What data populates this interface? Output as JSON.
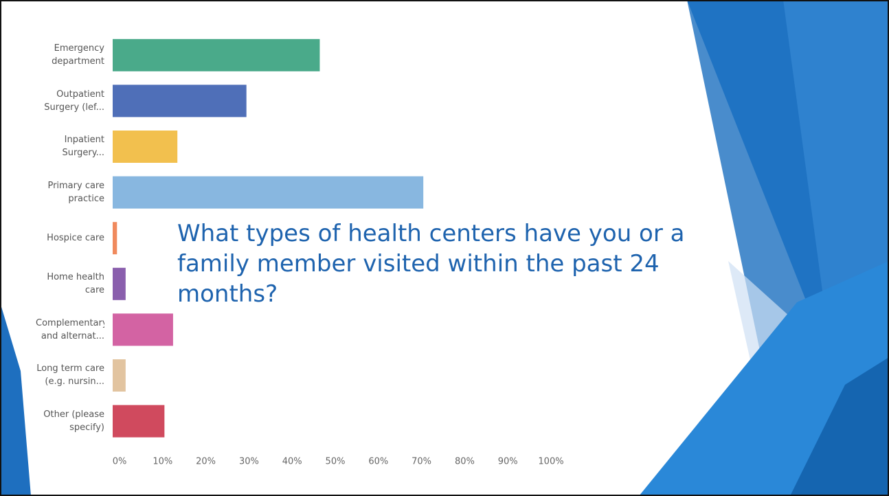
{
  "chart_data": {
    "type": "bar",
    "orientation": "horizontal",
    "title": "What types of health centers have you or a family member visited within the past 24 months?",
    "categories": [
      "Emergency department",
      "Outpatient Surgery (lef...",
      "Inpatient Surgery...",
      "Primary care practice",
      "Hospice care",
      "Home health care",
      "Complementary and alternat...",
      "Long term care (e.g. nursin...",
      "Other (please specify)"
    ],
    "values": [
      48,
      31,
      15,
      72,
      1,
      3,
      14,
      3,
      12
    ],
    "colors": [
      "#4aaa8a",
      "#4f6fb8",
      "#f2c04e",
      "#88b7e0",
      "#f08a5d",
      "#8a5fad",
      "#d363a3",
      "#e2c4a0",
      "#d04a5e"
    ],
    "xlim": [
      0,
      100
    ],
    "xticks": [
      {
        "value": 0,
        "label": "0%"
      },
      {
        "value": 10,
        "label": "10%"
      },
      {
        "value": 20,
        "label": "20%"
      },
      {
        "value": 30,
        "label": "30%"
      },
      {
        "value": 40,
        "label": "40%"
      },
      {
        "value": 50,
        "label": "50%"
      },
      {
        "value": 60,
        "label": "60%"
      },
      {
        "value": 70,
        "label": "70%"
      },
      {
        "value": 80,
        "label": "80%"
      },
      {
        "value": 90,
        "label": "90%"
      },
      {
        "value": 100,
        "label": "100%"
      }
    ]
  }
}
